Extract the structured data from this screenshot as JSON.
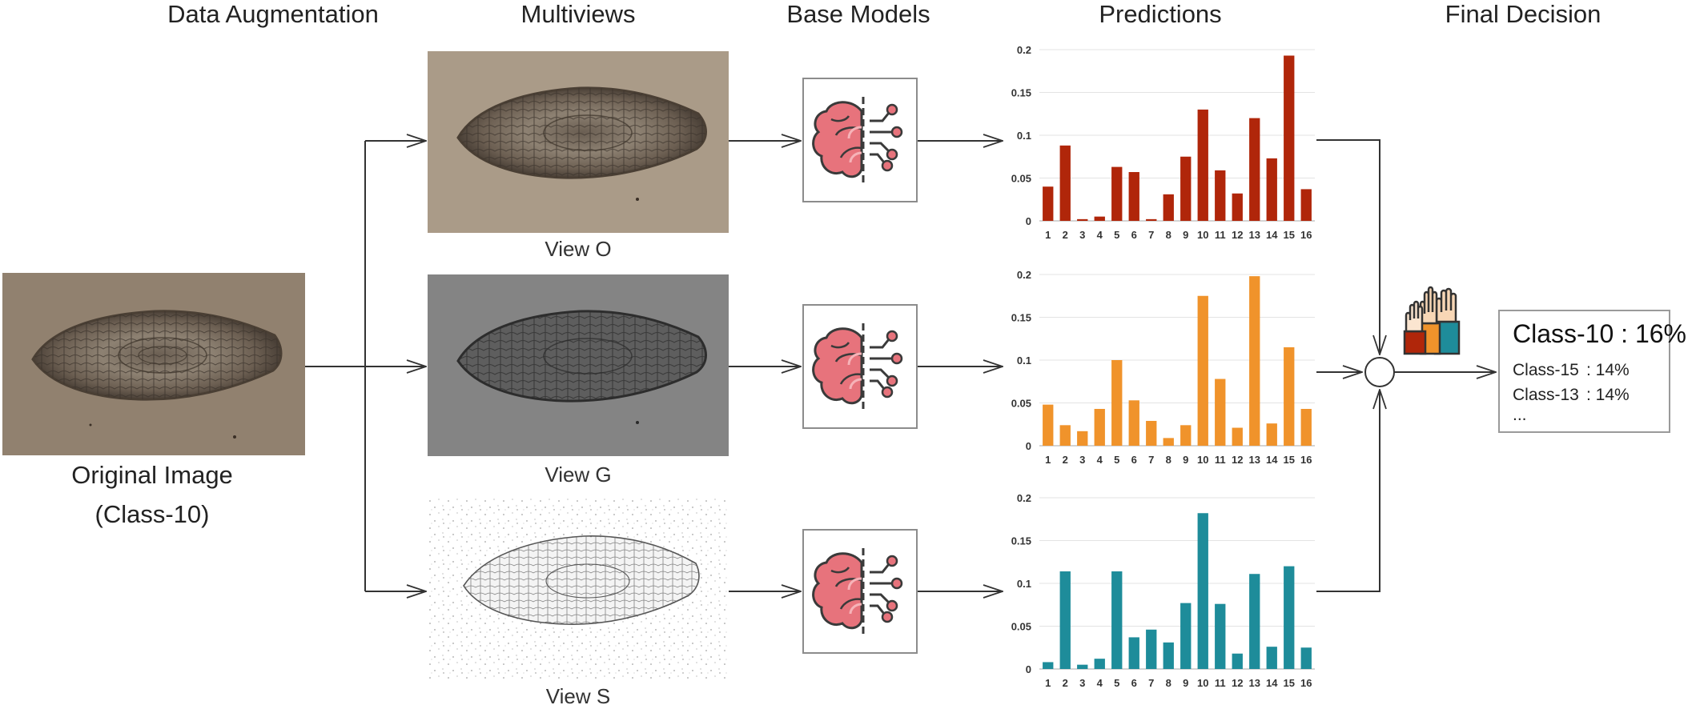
{
  "titles": {
    "augmentation": "Data Augmentation",
    "multiviews": "Multiviews",
    "base_models": "Base Models",
    "predictions": "Predictions",
    "final_decision": "Final Decision"
  },
  "original": {
    "label": "Original Image",
    "class_label": "(Class-10)"
  },
  "views": [
    {
      "label": "View O"
    },
    {
      "label": "View G"
    },
    {
      "label": "View S"
    }
  ],
  "final": {
    "top": "Class-10 : 16%",
    "rows": [
      {
        "cls": "Class-15",
        "val": ":  14%"
      },
      {
        "cls": "Class-13",
        "val": ":  14%"
      }
    ],
    "more": "..."
  },
  "colors": {
    "view_o": "#b0260a",
    "view_g": "#f0932b",
    "view_s": "#1e8c9a"
  },
  "chart_data": [
    {
      "type": "bar",
      "name": "View O",
      "categories": [
        "1",
        "2",
        "3",
        "4",
        "5",
        "6",
        "7",
        "8",
        "9",
        "10",
        "11",
        "12",
        "13",
        "14",
        "15",
        "16"
      ],
      "values": [
        0.04,
        0.088,
        0.002,
        0.005,
        0.063,
        0.057,
        0.002,
        0.031,
        0.075,
        0.13,
        0.059,
        0.032,
        0.12,
        0.073,
        0.193,
        0.037
      ],
      "yticks": [
        "0",
        "0.05",
        "0.1",
        "0.15",
        "0.2"
      ],
      "ylim": [
        0,
        0.2
      ]
    },
    {
      "type": "bar",
      "name": "View G",
      "categories": [
        "1",
        "2",
        "3",
        "4",
        "5",
        "6",
        "7",
        "8",
        "9",
        "10",
        "11",
        "12",
        "13",
        "14",
        "15",
        "16"
      ],
      "values": [
        0.048,
        0.024,
        0.017,
        0.043,
        0.1,
        0.053,
        0.029,
        0.009,
        0.024,
        0.175,
        0.078,
        0.021,
        0.198,
        0.026,
        0.115,
        0.043
      ],
      "yticks": [
        "0",
        "0.05",
        "0.1",
        "0.15",
        "0.2"
      ],
      "ylim": [
        0,
        0.2
      ]
    },
    {
      "type": "bar",
      "name": "View S",
      "categories": [
        "1",
        "2",
        "3",
        "4",
        "5",
        "6",
        "7",
        "8",
        "9",
        "10",
        "11",
        "12",
        "13",
        "14",
        "15",
        "16"
      ],
      "values": [
        0.008,
        0.114,
        0.005,
        0.012,
        0.114,
        0.037,
        0.046,
        0.031,
        0.077,
        0.182,
        0.076,
        0.018,
        0.111,
        0.026,
        0.12,
        0.025
      ],
      "yticks": [
        "0",
        "0.05",
        "0.1",
        "0.15",
        "0.2"
      ],
      "ylim": [
        0,
        0.2
      ]
    }
  ]
}
